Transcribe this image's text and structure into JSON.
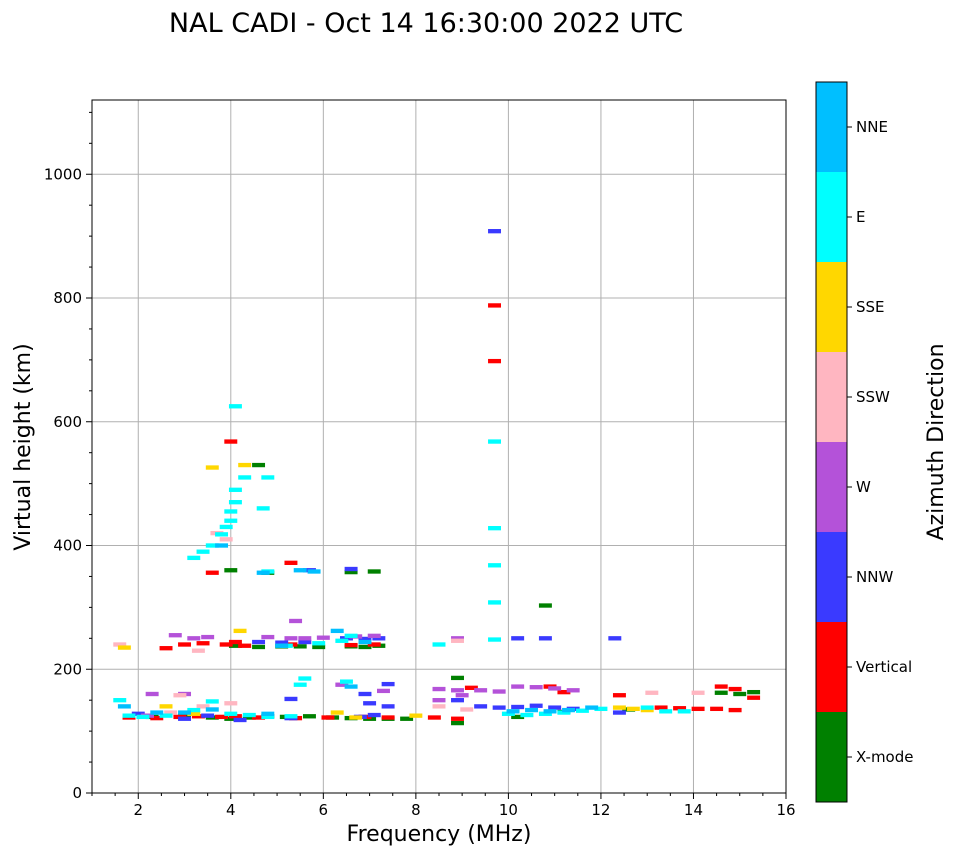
{
  "chart_data": {
    "type": "scatter",
    "title": "NAL CADI - Oct 14 16:30:00 2022 UTC",
    "xlabel": "Frequency (MHz)",
    "ylabel": "Virtual height (km)",
    "xlim": [
      1,
      16
    ],
    "ylim": [
      0,
      1120
    ],
    "xticks": [
      2,
      4,
      6,
      8,
      10,
      12,
      14,
      16
    ],
    "yticks": [
      0,
      200,
      400,
      600,
      800,
      1000
    ],
    "grid": true,
    "colorbar": {
      "label": "Azimuth Direction",
      "categories": [
        "X-mode",
        "Vertical",
        "NNW",
        "W",
        "SSW",
        "SSE",
        "E",
        "NNE"
      ],
      "colors": [
        "#008000",
        "#ff0000",
        "#3a3aff",
        "#b452d9",
        "#ffb6c1",
        "#ffd700",
        "#00ffff",
        "#00bfff"
      ]
    },
    "series": [
      {
        "name": "X-mode",
        "color": "#008000",
        "points": [
          [
            2.3,
            123
          ],
          [
            3.0,
            125
          ],
          [
            3.6,
            122
          ],
          [
            4.0,
            120
          ],
          [
            4.4,
            122
          ],
          [
            4.8,
            124
          ],
          [
            5.2,
            123
          ],
          [
            5.7,
            124
          ],
          [
            6.2,
            122
          ],
          [
            6.6,
            121
          ],
          [
            7.0,
            120
          ],
          [
            7.4,
            120
          ],
          [
            7.8,
            120
          ],
          [
            4.1,
            238
          ],
          [
            4.6,
            236
          ],
          [
            5.1,
            237
          ],
          [
            5.5,
            237
          ],
          [
            5.9,
            236
          ],
          [
            6.6,
            237
          ],
          [
            6.9,
            236
          ],
          [
            7.2,
            238
          ],
          [
            4.0,
            360
          ],
          [
            4.8,
            356
          ],
          [
            6.6,
            357
          ],
          [
            7.1,
            358
          ],
          [
            8.9,
            186
          ],
          [
            8.9,
            113
          ],
          [
            10.8,
            303
          ],
          [
            10.2,
            123
          ],
          [
            11.2,
            131
          ],
          [
            12.6,
            135
          ],
          [
            14.6,
            162
          ],
          [
            15.0,
            160
          ],
          [
            15.3,
            163
          ],
          [
            4.6,
            530
          ]
        ]
      },
      {
        "name": "Vertical",
        "color": "#ff0000",
        "points": [
          [
            1.8,
            122
          ],
          [
            2.4,
            121
          ],
          [
            2.9,
            123
          ],
          [
            3.3,
            124
          ],
          [
            3.8,
            123
          ],
          [
            4.1,
            124
          ],
          [
            4.6,
            122
          ],
          [
            5.4,
            121
          ],
          [
            6.1,
            122
          ],
          [
            6.9,
            123
          ],
          [
            7.4,
            122
          ],
          [
            8.4,
            122
          ],
          [
            8.9,
            120
          ],
          [
            2.6,
            234
          ],
          [
            3.0,
            240
          ],
          [
            3.4,
            242
          ],
          [
            3.9,
            240
          ],
          [
            4.1,
            244
          ],
          [
            4.3,
            238
          ],
          [
            5.3,
            240
          ],
          [
            6.6,
            239
          ],
          [
            7.1,
            240
          ],
          [
            4.0,
            568
          ],
          [
            9.7,
            698
          ],
          [
            9.7,
            788
          ],
          [
            10.9,
            172
          ],
          [
            11.2,
            163
          ],
          [
            12.4,
            158
          ],
          [
            13.3,
            138
          ],
          [
            13.7,
            137
          ],
          [
            14.1,
            136
          ],
          [
            14.5,
            136
          ],
          [
            14.9,
            134
          ],
          [
            15.3,
            154
          ],
          [
            14.6,
            172
          ],
          [
            14.9,
            168
          ],
          [
            3.6,
            356
          ],
          [
            5.3,
            372
          ],
          [
            9.2,
            170
          ]
        ]
      },
      {
        "name": "NNW",
        "color": "#3a3aff",
        "points": [
          [
            2.0,
            128
          ],
          [
            3.0,
            120
          ],
          [
            3.5,
            125
          ],
          [
            4.2,
            118
          ],
          [
            5.3,
            121
          ],
          [
            6.8,
            123
          ],
          [
            7.1,
            126
          ],
          [
            4.6,
            244
          ],
          [
            5.1,
            243
          ],
          [
            5.6,
            244
          ],
          [
            6.5,
            250
          ],
          [
            6.9,
            249
          ],
          [
            7.2,
            250
          ],
          [
            7.4,
            176
          ],
          [
            6.9,
            160
          ],
          [
            7.0,
            145
          ],
          [
            8.9,
            150
          ],
          [
            9.4,
            140
          ],
          [
            9.8,
            138
          ],
          [
            10.2,
            139
          ],
          [
            10.6,
            141
          ],
          [
            11.0,
            138
          ],
          [
            11.4,
            136
          ],
          [
            12.4,
            130
          ],
          [
            10.2,
            250
          ],
          [
            10.8,
            250
          ],
          [
            12.3,
            250
          ],
          [
            9.7,
            908
          ],
          [
            5.7,
            360
          ],
          [
            6.6,
            362
          ],
          [
            5.3,
            152
          ],
          [
            7.4,
            140
          ]
        ]
      },
      {
        "name": "W",
        "color": "#b452d9",
        "points": [
          [
            2.2,
            125
          ],
          [
            2.8,
            255
          ],
          [
            3.2,
            250
          ],
          [
            3.5,
            252
          ],
          [
            4.8,
            252
          ],
          [
            5.3,
            250
          ],
          [
            5.6,
            250
          ],
          [
            6.0,
            251
          ],
          [
            6.7,
            253
          ],
          [
            7.1,
            254
          ],
          [
            8.5,
            168
          ],
          [
            8.9,
            166
          ],
          [
            9.4,
            166
          ],
          [
            9.8,
            164
          ],
          [
            10.2,
            172
          ],
          [
            10.6,
            171
          ],
          [
            11.0,
            169
          ],
          [
            11.4,
            166
          ],
          [
            8.9,
            250
          ],
          [
            5.4,
            278
          ],
          [
            6.4,
            175
          ],
          [
            7.3,
            165
          ],
          [
            8.5,
            150
          ],
          [
            9.0,
            158
          ],
          [
            2.3,
            160
          ],
          [
            3.0,
            160
          ]
        ]
      },
      {
        "name": "SSW",
        "color": "#ffb6c1",
        "points": [
          [
            1.6,
            240
          ],
          [
            2.9,
            158
          ],
          [
            3.4,
            140
          ],
          [
            3.7,
            420
          ],
          [
            3.9,
            410
          ],
          [
            2.7,
            130
          ],
          [
            4.0,
            145
          ],
          [
            8.5,
            140
          ],
          [
            9.1,
            135
          ],
          [
            13.1,
            162
          ],
          [
            14.1,
            162
          ],
          [
            8.9,
            246
          ],
          [
            3.3,
            230
          ]
        ]
      },
      {
        "name": "SSE",
        "color": "#ffd700",
        "points": [
          [
            1.7,
            235
          ],
          [
            2.6,
            140
          ],
          [
            3.2,
            128
          ],
          [
            3.6,
            526
          ],
          [
            4.3,
            530
          ],
          [
            4.2,
            262
          ],
          [
            6.7,
            122
          ],
          [
            12.4,
            138
          ],
          [
            12.7,
            136
          ],
          [
            13.0,
            134
          ],
          [
            6.3,
            130
          ],
          [
            8.0,
            125
          ]
        ]
      },
      {
        "name": "E",
        "color": "#00ffff",
        "points": [
          [
            1.6,
            150
          ],
          [
            1.8,
            125
          ],
          [
            2.1,
            123
          ],
          [
            2.6,
            125
          ],
          [
            3.2,
            134
          ],
          [
            3.6,
            148
          ],
          [
            4.0,
            128
          ],
          [
            4.4,
            126
          ],
          [
            4.8,
            123
          ],
          [
            5.3,
            124
          ],
          [
            3.2,
            380
          ],
          [
            3.4,
            390
          ],
          [
            3.6,
            400
          ],
          [
            3.8,
            418
          ],
          [
            3.9,
            430
          ],
          [
            4.0,
            440
          ],
          [
            4.0,
            455
          ],
          [
            4.1,
            470
          ],
          [
            4.1,
            490
          ],
          [
            4.1,
            625
          ],
          [
            4.3,
            510
          ],
          [
            4.7,
            460
          ],
          [
            4.8,
            510
          ],
          [
            4.8,
            358
          ],
          [
            5.2,
            238
          ],
          [
            5.9,
            242
          ],
          [
            6.4,
            246
          ],
          [
            6.6,
            254
          ],
          [
            8.5,
            240
          ],
          [
            9.7,
            248
          ],
          [
            9.7,
            308
          ],
          [
            9.7,
            368
          ],
          [
            9.7,
            428
          ],
          [
            9.7,
            568
          ],
          [
            10.0,
            128
          ],
          [
            10.4,
            126
          ],
          [
            10.8,
            128
          ],
          [
            11.2,
            130
          ],
          [
            11.6,
            133
          ],
          [
            12.0,
            136
          ],
          [
            13.0,
            138
          ],
          [
            13.4,
            132
          ],
          [
            13.8,
            132
          ],
          [
            5.5,
            175
          ],
          [
            5.6,
            185
          ],
          [
            6.5,
            180
          ]
        ]
      },
      {
        "name": "NNE",
        "color": "#00bfff",
        "points": [
          [
            1.7,
            140
          ],
          [
            2.4,
            130
          ],
          [
            3.0,
            130
          ],
          [
            3.6,
            135
          ],
          [
            4.8,
            128
          ],
          [
            5.1,
            238
          ],
          [
            6.3,
            262
          ],
          [
            6.9,
            244
          ],
          [
            3.8,
            400
          ],
          [
            4.7,
            356
          ],
          [
            5.5,
            360
          ],
          [
            5.8,
            358
          ],
          [
            10.1,
            132
          ],
          [
            10.5,
            134
          ],
          [
            10.9,
            132
          ],
          [
            11.3,
            134
          ],
          [
            11.8,
            138
          ],
          [
            6.6,
            172
          ]
        ]
      }
    ]
  }
}
